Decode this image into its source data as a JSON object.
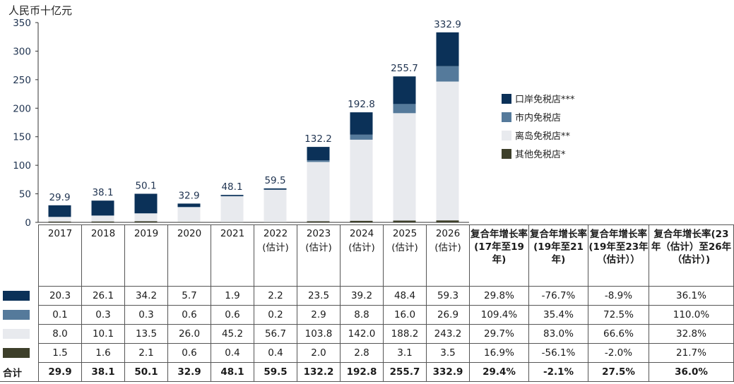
{
  "chart_data": {
    "type": "bar",
    "stacked": true,
    "ylabel": "人民币十亿元",
    "ylim": [
      0,
      350
    ],
    "yticks": [
      0,
      50,
      100,
      150,
      200,
      250,
      300,
      350
    ],
    "categories": [
      "2017",
      "2018",
      "2019",
      "2020",
      "2021",
      "2022\n(估计)",
      "2023\n(估计)",
      "2024\n(估计)",
      "2025\n(估计)",
      "2026\n(估计)"
    ],
    "totals": [
      "29.9",
      "38.1",
      "50.1",
      "32.9",
      "48.1",
      "59.5",
      "132.2",
      "192.8",
      "255.7",
      "332.9"
    ],
    "series": [
      {
        "name": "口岸免税店***",
        "color": "#0b3158",
        "values": [
          20.3,
          26.1,
          34.2,
          5.7,
          1.9,
          2.2,
          23.5,
          39.2,
          48.4,
          59.3
        ],
        "cagr": [
          "29.8%",
          "-76.7%",
          "-8.9%",
          "36.1%"
        ]
      },
      {
        "name": "市内免税店",
        "color": "#557a9b",
        "values": [
          0.1,
          0.3,
          0.3,
          0.6,
          0.6,
          0.2,
          2.9,
          8.8,
          16.0,
          26.9
        ],
        "cagr": [
          "109.4%",
          "35.4%",
          "72.5%",
          "110.0%"
        ]
      },
      {
        "name": "离岛免税店**",
        "color": "#e8eaee",
        "values": [
          8.0,
          10.1,
          13.5,
          26.0,
          45.2,
          56.7,
          103.8,
          142.0,
          188.2,
          243.2
        ],
        "cagr": [
          "29.7%",
          "83.0%",
          "66.6%",
          "32.8%"
        ]
      },
      {
        "name": "其他免税店*",
        "color": "#3d3f2a",
        "values": [
          1.5,
          1.6,
          2.1,
          0.6,
          0.4,
          0.4,
          2.0,
          2.8,
          3.1,
          3.5
        ],
        "cagr": [
          "16.9%",
          "-56.1%",
          "-2.0%",
          "21.7%"
        ]
      }
    ],
    "cagr_headers": [
      "复合年增长率 (17年至19年)",
      "复合年增长率 (19年至21年)",
      "复合年增长率 (19年至23年（估计））",
      "复合年增长率(23年（估计）至26年（估计）)"
    ],
    "total_label": "合计",
    "total_cagr": [
      "29.4%",
      "-2.1%",
      "27.5%",
      "36.0%"
    ],
    "legend_position": "right"
  }
}
